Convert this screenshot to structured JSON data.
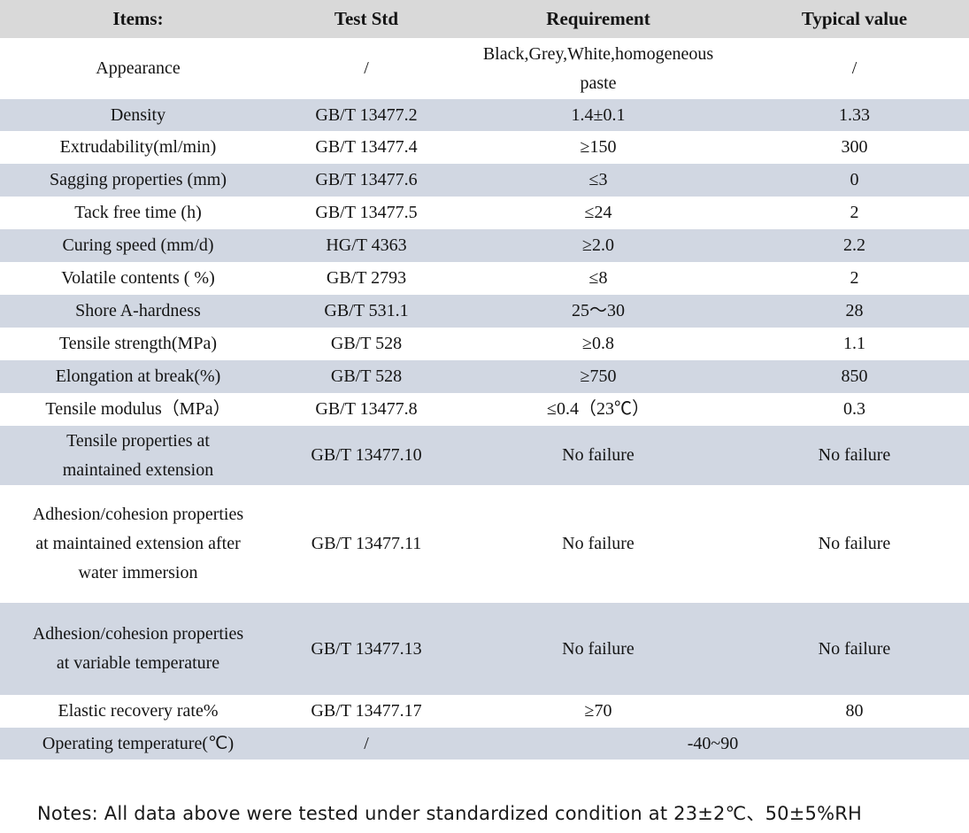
{
  "table": {
    "headers": [
      "Items:",
      "Test Std",
      "Requirement",
      "Typical value"
    ],
    "rows": [
      {
        "item": "Appearance",
        "std": "/",
        "req": "Black,Grey,White,homogeneous paste",
        "typ": "/"
      },
      {
        "item": "Density",
        "std": "GB/T 13477.2",
        "req": "1.4±0.1",
        "typ": "1.33"
      },
      {
        "item": "Extrudability(ml/min)",
        "std": "GB/T 13477.4",
        "req": "≥150",
        "typ": "300"
      },
      {
        "item": "Sagging properties (mm)",
        "std": "GB/T 13477.6",
        "req": "≤3",
        "typ": "0"
      },
      {
        "item": "Tack free time (h)",
        "std": "GB/T 13477.5",
        "req": "≤24",
        "typ": "2"
      },
      {
        "item": "Curing speed (mm/d)",
        "std": "HG/T 4363",
        "req": "≥2.0",
        "typ": "2.2"
      },
      {
        "item": "Volatile contents ( %)",
        "std": "GB/T 2793",
        "req": "≤8",
        "typ": "2"
      },
      {
        "item": "Shore A-hardness",
        "std": "GB/T 531.1",
        "req": "25～30",
        "typ": "28"
      },
      {
        "item": "Tensile strength(MPa)",
        "std": "GB/T 528",
        "req": "≥0.8",
        "typ": "1.1"
      },
      {
        "item": "Elongation at break(%)",
        "std": "GB/T 528",
        "req": "≥750",
        "typ": "850"
      },
      {
        "item": "Tensile modulus（MPa）",
        "std": "GB/T 13477.8",
        "req": "≤0.4（23℃）",
        "typ": "0.3"
      },
      {
        "item": "Tensile properties at maintained extension",
        "std": "GB/T 13477.10",
        "req": "No failure",
        "typ": "No failure"
      },
      {
        "item": "Adhesion/cohesion properties at maintained extension after water immersion",
        "std": "GB/T 13477.11",
        "req": "No failure",
        "typ": "No failure"
      },
      {
        "item": "Adhesion/cohesion properties at variable temperature",
        "std": "GB/T 13477.13",
        "req": "No failure",
        "typ": "No failure"
      },
      {
        "item": "Elastic recovery rate%",
        "std": "GB/T 13477.17",
        "req": "≥70",
        "typ": "80"
      },
      {
        "item": "Operating temperature(℃)",
        "std": "/",
        "req": "-40~90",
        "typ": null
      }
    ]
  },
  "notes": {
    "text": "Notes: All data above were tested under standardized condition at 23±2℃、50±5%RH"
  },
  "colors": {
    "header_background": "#d9d9d9",
    "shaded_row_background": "#d1d7e2",
    "text": "#141414"
  }
}
